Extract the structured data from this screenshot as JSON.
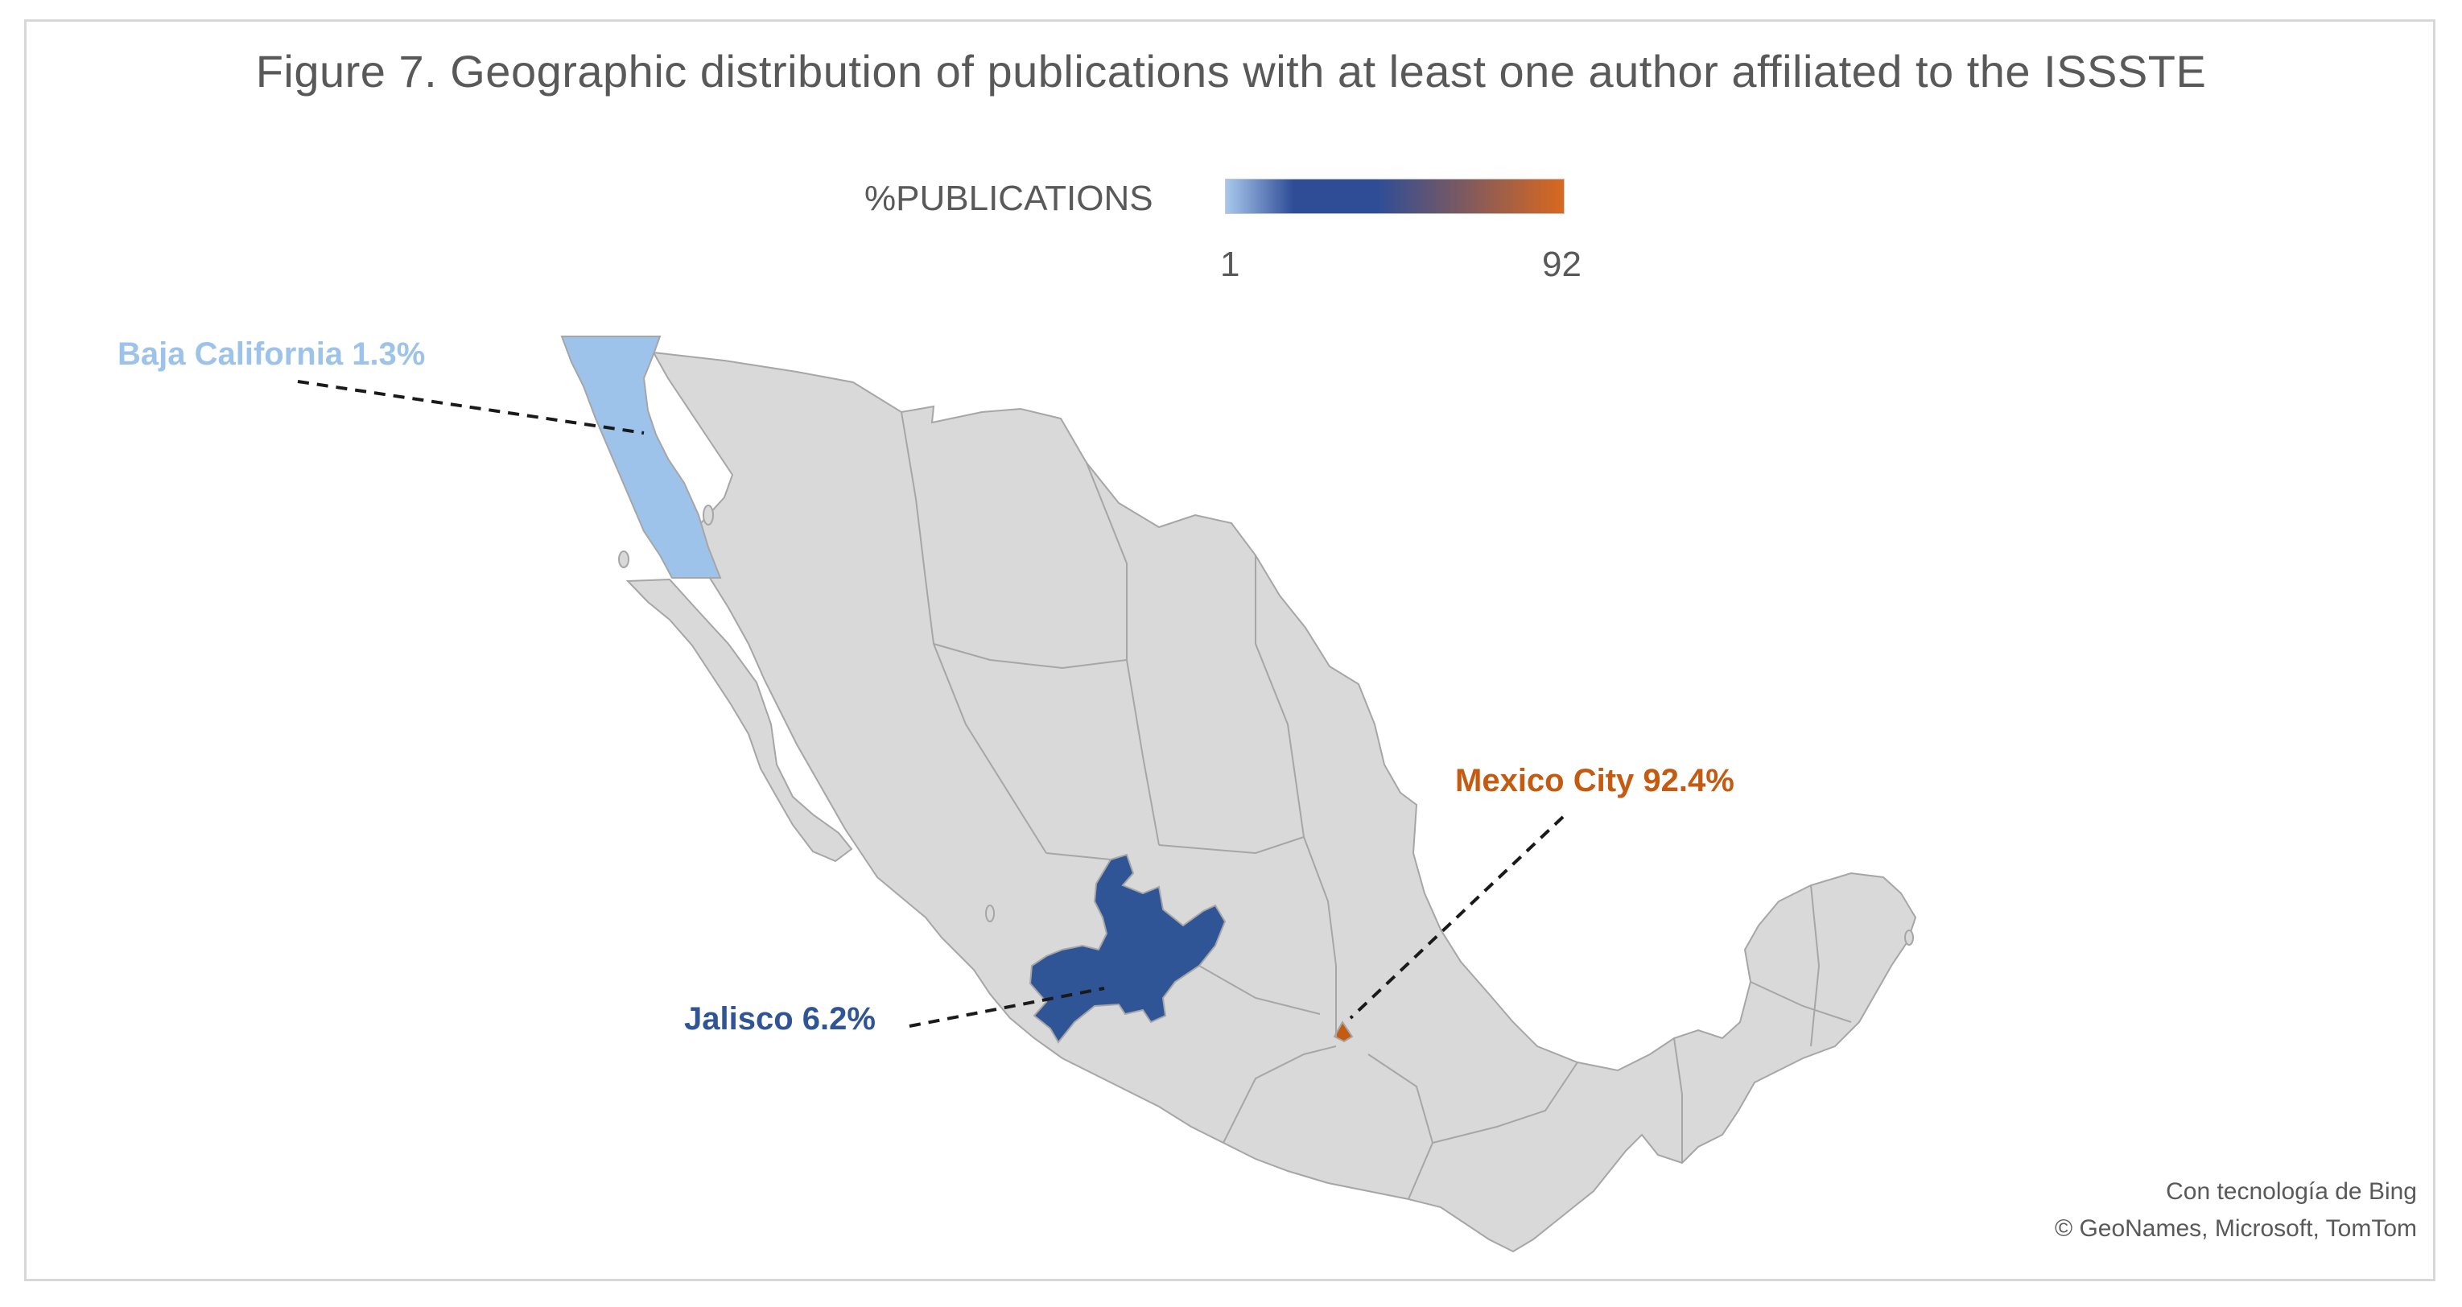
{
  "title": "Figure 7. Geographic distribution of publications with at least one author affiliated to the ISSSTE",
  "legend": {
    "label": "%PUBLICATIONS",
    "min": "1",
    "max": "92",
    "color_low": "#a9c8ec",
    "color_mid": "#2f4d97",
    "color_high": "#d9681f"
  },
  "regions": [
    {
      "name": "Baja California",
      "label": "Baja California 1.3%",
      "value": 1.3,
      "color": "#9dc3ea"
    },
    {
      "name": "Jalisco",
      "label": "Jalisco 6.2%",
      "value": 6.2,
      "color": "#2f5597"
    },
    {
      "name": "Mexico City",
      "label": "Mexico City 92.4%",
      "value": 92.4,
      "color": "#c55a11"
    }
  ],
  "map_colors": {
    "base_fill": "#d9d9d9",
    "border": "#a6a6a6"
  },
  "attribution": {
    "line1": "Con tecnología de Bing",
    "line2": "© GeoNames, Microsoft, TomTom"
  }
}
